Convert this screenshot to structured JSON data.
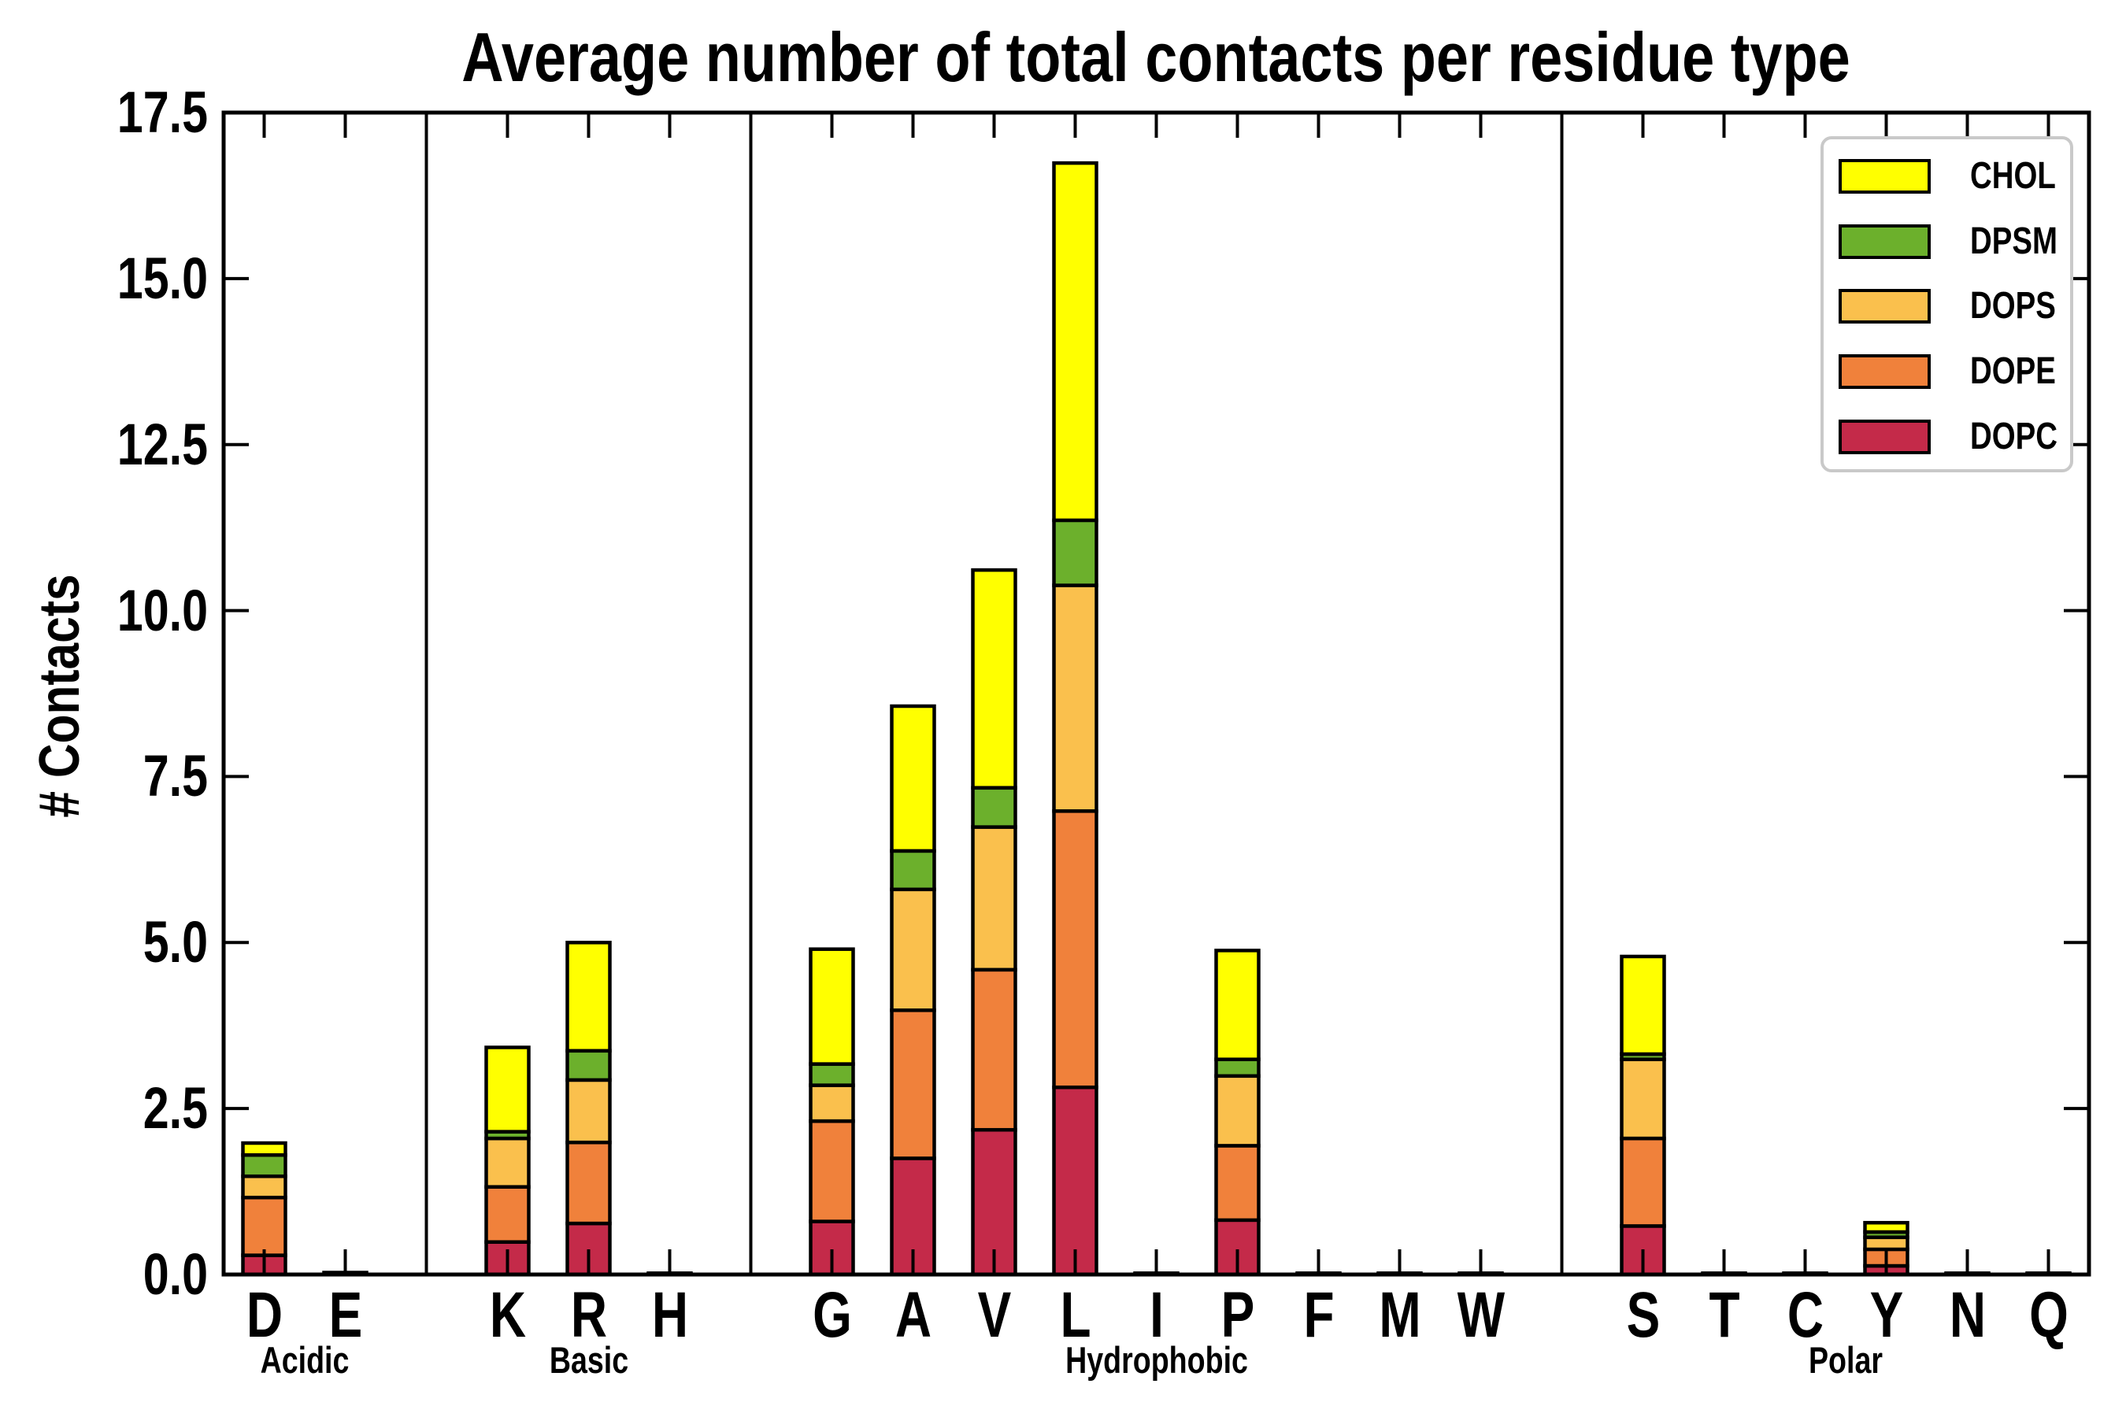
{
  "title": "Average number of total contacts per residue type",
  "ylabel": "# Contacts",
  "chart_data": {
    "type": "bar",
    "stacked": true,
    "title": "Average number of total contacts per residue type",
    "xlabel": "",
    "ylabel": "# Contacts",
    "ylim": [
      0,
      17.5
    ],
    "yticks": [
      0.0,
      2.5,
      5.0,
      7.5,
      10.0,
      12.5,
      15.0,
      17.5
    ],
    "ytick_labels": [
      "0.0",
      "2.5",
      "5.0",
      "7.5",
      "10.0",
      "12.5",
      "15.0",
      "17.5"
    ],
    "grid": false,
    "legend_position": "upper right",
    "stack_order_bottom_to_top": [
      "DOPC",
      "DOPE",
      "DOPS",
      "DPSM",
      "CHOL"
    ],
    "colors": {
      "CHOL": "#FFFF00",
      "DPSM": "#6CB02C",
      "DOPS": "#FAC04D",
      "DOPE": "#F0813B",
      "DOPC": "#C42A49"
    },
    "legend": {
      "entries": [
        {
          "name": "CHOL",
          "color": "#FFFF00"
        },
        {
          "name": "DPSM",
          "color": "#6CB02C"
        },
        {
          "name": "DOPS",
          "color": "#FAC04D"
        },
        {
          "name": "DOPE",
          "color": "#F0813B"
        },
        {
          "name": "DOPC",
          "color": "#C42A49"
        }
      ]
    },
    "groups": [
      {
        "label": "Acidic",
        "residues": [
          {
            "letter": "D",
            "values": {
              "DOPC": 0.29,
              "DOPE": 0.87,
              "DOPS": 0.32,
              "DPSM": 0.32,
              "CHOL": 0.18
            }
          },
          {
            "letter": "E",
            "values": {
              "DOPC": 0.03,
              "DOPE": 0,
              "DOPS": 0,
              "DPSM": 0,
              "CHOL": 0
            }
          }
        ]
      },
      {
        "label": "Basic",
        "residues": [
          {
            "letter": "K",
            "values": {
              "DOPC": 0.49,
              "DOPE": 0.83,
              "DOPS": 0.73,
              "DPSM": 0.1,
              "CHOL": 1.27
            }
          },
          {
            "letter": "R",
            "values": {
              "DOPC": 0.77,
              "DOPE": 1.22,
              "DOPS": 0.94,
              "DPSM": 0.44,
              "CHOL": 1.63
            }
          },
          {
            "letter": "H",
            "values": {
              "DOPC": 0.02,
              "DOPE": 0,
              "DOPS": 0,
              "DPSM": 0,
              "CHOL": 0
            }
          }
        ]
      },
      {
        "label": "Hydrophobic",
        "residues": [
          {
            "letter": "G",
            "values": {
              "DOPC": 0.8,
              "DOPE": 1.51,
              "DOPS": 0.54,
              "DPSM": 0.32,
              "CHOL": 1.73
            }
          },
          {
            "letter": "A",
            "values": {
              "DOPC": 1.75,
              "DOPE": 2.23,
              "DOPS": 1.82,
              "DPSM": 0.58,
              "CHOL": 2.18
            }
          },
          {
            "letter": "V",
            "values": {
              "DOPC": 2.18,
              "DOPE": 2.41,
              "DOPS": 2.15,
              "DPSM": 0.59,
              "CHOL": 3.28
            }
          },
          {
            "letter": "L",
            "values": {
              "DOPC": 2.82,
              "DOPE": 4.16,
              "DOPS": 3.4,
              "DPSM": 0.98,
              "CHOL": 5.38
            }
          },
          {
            "letter": "I",
            "values": {
              "DOPC": 0.02,
              "DOPE": 0,
              "DOPS": 0,
              "DPSM": 0,
              "CHOL": 0
            }
          },
          {
            "letter": "P",
            "values": {
              "DOPC": 0.82,
              "DOPE": 1.12,
              "DOPS": 1.05,
              "DPSM": 0.25,
              "CHOL": 1.64
            }
          },
          {
            "letter": "F",
            "values": {
              "DOPC": 0.02,
              "DOPE": 0,
              "DOPS": 0,
              "DPSM": 0,
              "CHOL": 0
            }
          },
          {
            "letter": "M",
            "values": {
              "DOPC": 0.02,
              "DOPE": 0,
              "DOPS": 0,
              "DPSM": 0,
              "CHOL": 0
            }
          },
          {
            "letter": "W",
            "values": {
              "DOPC": 0.02,
              "DOPE": 0,
              "DOPS": 0,
              "DPSM": 0,
              "CHOL": 0
            }
          }
        ]
      },
      {
        "label": "Polar",
        "residues": [
          {
            "letter": "S",
            "values": {
              "DOPC": 0.73,
              "DOPE": 1.32,
              "DOPS": 1.19,
              "DPSM": 0.08,
              "CHOL": 1.47
            }
          },
          {
            "letter": "T",
            "values": {
              "DOPC": 0.02,
              "DOPE": 0,
              "DOPS": 0,
              "DPSM": 0,
              "CHOL": 0
            }
          },
          {
            "letter": "C",
            "values": {
              "DOPC": 0.02,
              "DOPE": 0,
              "DOPS": 0,
              "DPSM": 0,
              "CHOL": 0
            }
          },
          {
            "letter": "Y",
            "values": {
              "DOPC": 0.13,
              "DOPE": 0.25,
              "DOPS": 0.18,
              "DPSM": 0.08,
              "CHOL": 0.14
            }
          },
          {
            "letter": "N",
            "values": {
              "DOPC": 0.02,
              "DOPE": 0,
              "DOPS": 0,
              "DPSM": 0,
              "CHOL": 0
            }
          },
          {
            "letter": "Q",
            "values": {
              "DOPC": 0.02,
              "DOPE": 0,
              "DOPS": 0,
              "DPSM": 0,
              "CHOL": 0
            }
          }
        ]
      }
    ]
  }
}
